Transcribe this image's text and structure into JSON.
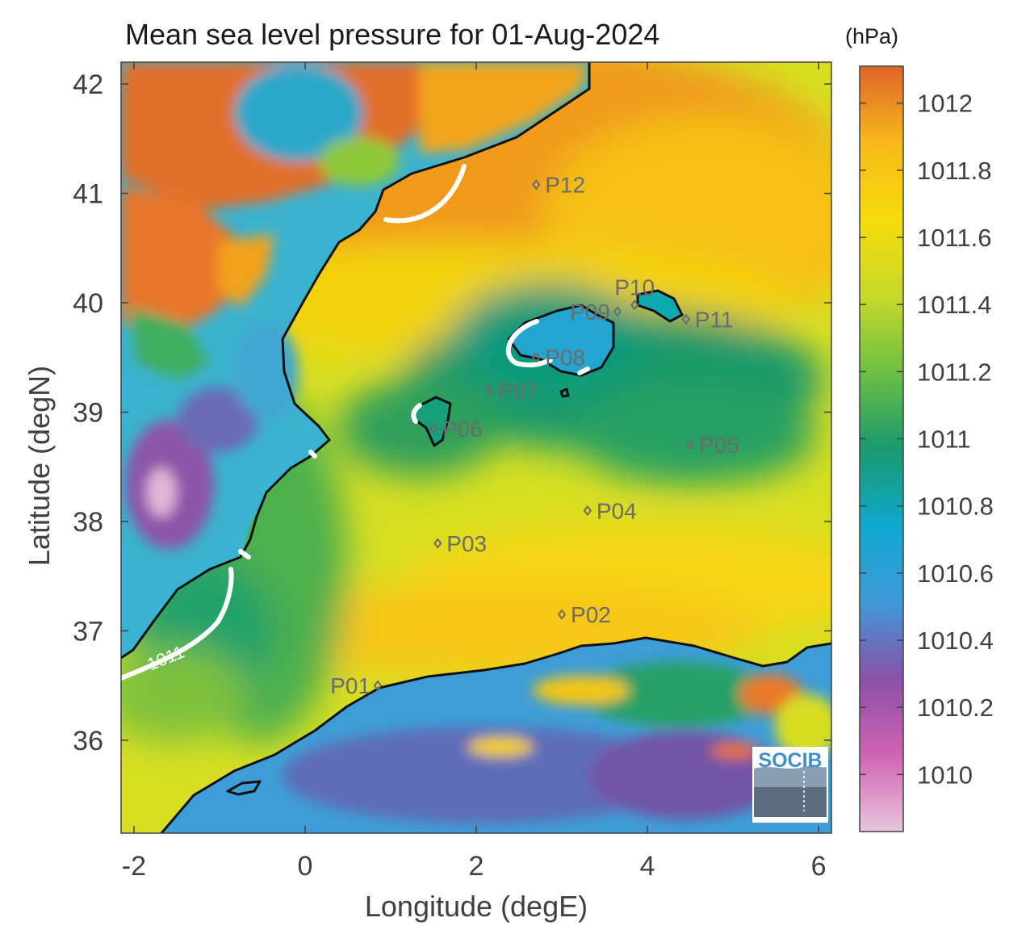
{
  "title": "Mean sea level pressure for 01-Aug-2024",
  "colorbar": {
    "unit": "(hPa)",
    "ticks": [
      "1012",
      "1011.8",
      "1011.6",
      "1011.4",
      "1011.2",
      "1011",
      "1010.8",
      "1010.6",
      "1010.4",
      "1010.2",
      "1010"
    ],
    "tick_values": [
      1012,
      1011.8,
      1011.6,
      1011.4,
      1011.2,
      1011,
      1010.8,
      1010.6,
      1010.4,
      1010.2,
      1010
    ],
    "range": [
      1009.83,
      1012.11
    ],
    "colors": [
      "#e8c6dd",
      "#d063b2",
      "#8a50a8",
      "#3e9ad8",
      "#0fa8cf",
      "#1a9a6e",
      "#6cbf43",
      "#c8da2a",
      "#f5dc0a",
      "#f7b91a",
      "#e0632a"
    ]
  },
  "axes": {
    "xlabel": "Longitude (degE)",
    "ylabel": "Latitude (degN)",
    "xticks": [
      "-2",
      "0",
      "2",
      "4",
      "6"
    ],
    "xtick_values": [
      -2,
      0,
      2,
      4,
      6
    ],
    "yticks": [
      "42",
      "41",
      "40",
      "39",
      "38",
      "37",
      "36"
    ],
    "ytick_values": [
      42,
      41,
      40,
      39,
      38,
      37,
      36
    ],
    "xlim": [
      -2.15,
      6.15
    ],
    "ylim": [
      35.15,
      42.2
    ]
  },
  "contour_label": "1011",
  "points": [
    {
      "label": "P01",
      "lon": 0.85,
      "lat": 36.5,
      "label_side": "left"
    },
    {
      "label": "P02",
      "lon": 3.0,
      "lat": 37.15,
      "label_side": "right"
    },
    {
      "label": "P03",
      "lon": 1.55,
      "lat": 37.8,
      "label_side": "right"
    },
    {
      "label": "P04",
      "lon": 3.3,
      "lat": 38.1,
      "label_side": "right"
    },
    {
      "label": "P05",
      "lon": 4.5,
      "lat": 38.7,
      "label_side": "right"
    },
    {
      "label": "P06",
      "lon": 1.5,
      "lat": 38.85,
      "label_side": "right"
    },
    {
      "label": "P07",
      "lon": 2.15,
      "lat": 39.2,
      "label_side": "right"
    },
    {
      "label": "P08",
      "lon": 2.7,
      "lat": 39.5,
      "label_side": "right"
    },
    {
      "label": "P09",
      "lon": 3.65,
      "lat": 39.92,
      "label_side": "left"
    },
    {
      "label": "P10",
      "lon": 3.85,
      "lat": 39.98,
      "label_side": "above"
    },
    {
      "label": "P11",
      "lon": 4.45,
      "lat": 39.85,
      "label_side": "right"
    },
    {
      "label": "P12",
      "lon": 2.7,
      "lat": 41.08,
      "label_side": "right"
    }
  ],
  "logo": {
    "text": "SOCIB"
  }
}
